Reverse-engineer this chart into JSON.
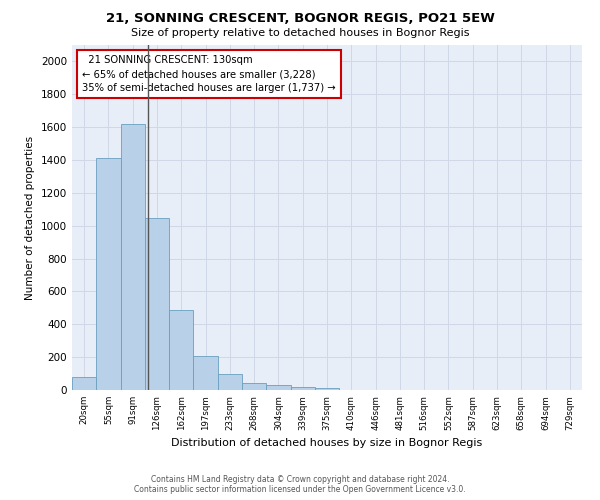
{
  "title": "21, SONNING CRESCENT, BOGNOR REGIS, PO21 5EW",
  "subtitle": "Size of property relative to detached houses in Bognor Regis",
  "xlabel": "Distribution of detached houses by size in Bognor Regis",
  "ylabel": "Number of detached properties",
  "footer_line1": "Contains HM Land Registry data © Crown copyright and database right 2024.",
  "footer_line2": "Contains public sector information licensed under the Open Government Licence v3.0.",
  "bin_labels": [
    "20sqm",
    "55sqm",
    "91sqm",
    "126sqm",
    "162sqm",
    "197sqm",
    "233sqm",
    "268sqm",
    "304sqm",
    "339sqm",
    "375sqm",
    "410sqm",
    "446sqm",
    "481sqm",
    "516sqm",
    "552sqm",
    "587sqm",
    "623sqm",
    "658sqm",
    "694sqm",
    "729sqm"
  ],
  "bar_values": [
    80,
    1415,
    1620,
    1045,
    490,
    205,
    100,
    45,
    30,
    20,
    15,
    0,
    0,
    0,
    0,
    0,
    0,
    0,
    0,
    0,
    0
  ],
  "bar_color": "#b8d0e8",
  "bar_edge_color": "#6a9fc0",
  "ylim": [
    0,
    2100
  ],
  "yticks": [
    0,
    200,
    400,
    600,
    800,
    1000,
    1200,
    1400,
    1600,
    1800,
    2000
  ],
  "annotation_text": "  21 SONNING CRESCENT: 130sqm\n← 65% of detached houses are smaller (3,228)\n35% of semi-detached houses are larger (1,737) →",
  "annotation_box_color": "#ffffff",
  "annotation_box_edge_color": "#cc0000",
  "vline_color": "#555555",
  "grid_color": "#d0d8e8",
  "background_color": "#e8eef8"
}
